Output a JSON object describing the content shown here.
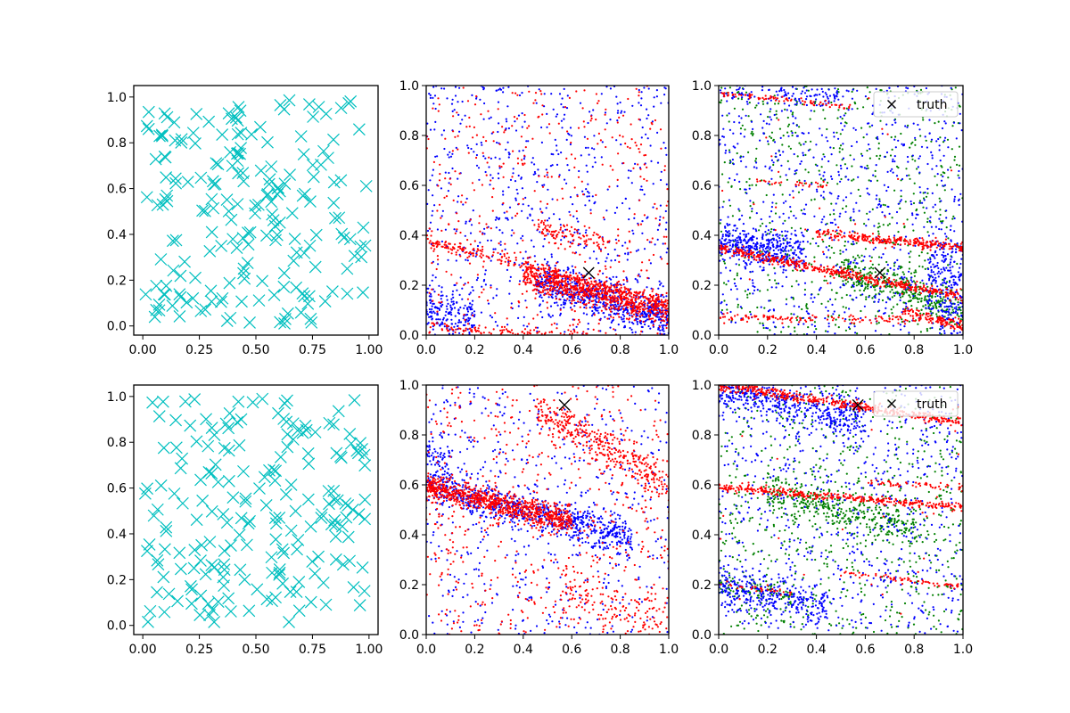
{
  "chart_data": [
    {
      "panel": "row1-col1",
      "type": "scatter",
      "xlim": [
        -0.04,
        1.04
      ],
      "ylim": [
        -0.04,
        1.05
      ],
      "xticks": [
        "0.00",
        "0.25",
        "0.50",
        "0.75",
        "1.00"
      ],
      "yticks": [
        "0.0",
        "0.2",
        "0.4",
        "0.6",
        "0.8",
        "1.0"
      ],
      "grid": false,
      "series": [
        {
          "color": "#00bfbf",
          "marker": "x-large",
          "count": 200,
          "distribution": "uniform",
          "seed": 11
        }
      ]
    },
    {
      "panel": "row1-col2",
      "type": "scatter",
      "xlim": [
        0,
        1
      ],
      "ylim": [
        0,
        1
      ],
      "xticks": [
        "0.0",
        "0.2",
        "0.4",
        "0.6",
        "0.8",
        "1.0"
      ],
      "yticks": [
        "0.0",
        "0.2",
        "0.4",
        "0.6",
        "0.8",
        "1.0"
      ],
      "grid": false,
      "series": [
        {
          "color": "#0000ff",
          "marker": "dot",
          "bands": [
            {
              "x": [
                0.45,
                1.0
              ],
              "y0": 0.32,
              "slope": -0.25,
              "spread": 0.04,
              "count": 600
            },
            {
              "x": [
                0.85,
                1.0
              ],
              "y0": 0.4,
              "slope": -1.6,
              "spread": 0.05,
              "count": 120
            },
            {
              "x": [
                0.0,
                0.2
              ],
              "y0": 0.11,
              "slope": -0.3,
              "spread": 0.06,
              "count": 180
            }
          ],
          "background": 700
        },
        {
          "color": "#ff0000",
          "marker": "dot",
          "bands": [
            {
              "x": [
                0.0,
                1.0
              ],
              "y0": 0.38,
              "slope": -0.25,
              "spread": 0.012,
              "count": 260
            },
            {
              "x": [
                0.4,
                1.0
              ],
              "y0": 0.34,
              "slope": -0.25,
              "spread": 0.03,
              "count": 700
            },
            {
              "x": [
                0.0,
                1.0
              ],
              "y0": 0.03,
              "slope": -0.05,
              "spread": 0.012,
              "count": 160
            },
            {
              "x": [
                0.45,
                0.75
              ],
              "y0": 0.52,
              "slope": -0.2,
              "spread": 0.02,
              "count": 90
            }
          ],
          "background": 450
        }
      ],
      "truth": {
        "x": 0.67,
        "y": 0.25
      }
    },
    {
      "panel": "row1-col3",
      "type": "scatter",
      "xlim": [
        0,
        1
      ],
      "ylim": [
        0,
        1
      ],
      "xticks": [
        "0.0",
        "0.2",
        "0.4",
        "0.6",
        "0.8",
        "1.0"
      ],
      "yticks": [
        "0.0",
        "0.2",
        "0.4",
        "0.6",
        "0.8",
        "1.0"
      ],
      "grid": false,
      "series": [
        {
          "color": "#008000",
          "marker": "dot",
          "bands": [
            {
              "x": [
                0.5,
                1.0
              ],
              "y0": 0.44,
              "slope": -0.35,
              "spread": 0.04,
              "count": 350
            }
          ],
          "background": 650
        },
        {
          "color": "#0000ff",
          "marker": "dot",
          "bands": [
            {
              "x": [
                0.0,
                0.35
              ],
              "y0": 0.37,
              "slope": -0.1,
              "spread": 0.04,
              "count": 350
            },
            {
              "x": [
                0.85,
                1.0
              ],
              "y0": 0.5,
              "slope": -0.3,
              "spread": 0.12,
              "count": 250
            },
            {
              "x": [
                0.0,
                0.5
              ],
              "y0": 0.98,
              "slope": -0.05,
              "spread": 0.02,
              "count": 100
            }
          ],
          "background": 800
        },
        {
          "color": "#ff0000",
          "marker": "dot",
          "bands": [
            {
              "x": [
                0.0,
                1.0
              ],
              "y0": 0.35,
              "slope": -0.2,
              "spread": 0.01,
              "count": 450
            },
            {
              "x": [
                0.4,
                1.0
              ],
              "y0": 0.45,
              "slope": -0.1,
              "spread": 0.01,
              "count": 260
            },
            {
              "x": [
                0.0,
                1.0
              ],
              "y0": 0.07,
              "slope": -0.01,
              "spread": 0.008,
              "count": 150
            },
            {
              "x": [
                0.75,
                1.0
              ],
              "y0": 0.33,
              "slope": -0.3,
              "spread": 0.01,
              "count": 90
            },
            {
              "x": [
                0.0,
                0.55
              ],
              "y0": 0.97,
              "slope": -0.1,
              "spread": 0.006,
              "count": 80
            },
            {
              "x": [
                0.15,
                0.45
              ],
              "y0": 0.62,
              "slope": -0.04,
              "spread": 0.006,
              "count": 30
            }
          ],
          "background": 30
        }
      ],
      "truth": {
        "x": 0.66,
        "y": 0.25
      },
      "legend": {
        "label": "truth",
        "position": "top-right"
      }
    },
    {
      "panel": "row2-col1",
      "type": "scatter",
      "xlim": [
        -0.04,
        1.04
      ],
      "ylim": [
        -0.04,
        1.05
      ],
      "xticks": [
        "0.00",
        "0.25",
        "0.50",
        "0.75",
        "1.00"
      ],
      "yticks": [
        "0.0",
        "0.2",
        "0.4",
        "0.6",
        "0.8",
        "1.0"
      ],
      "grid": false,
      "series": [
        {
          "color": "#00bfbf",
          "marker": "x-large",
          "count": 200,
          "distribution": "uniform",
          "seed": 29
        }
      ]
    },
    {
      "panel": "row2-col2",
      "type": "scatter",
      "xlim": [
        0,
        1
      ],
      "ylim": [
        0,
        1
      ],
      "xticks": [
        "0.0",
        "0.2",
        "0.4",
        "0.6",
        "0.8",
        "1.0"
      ],
      "yticks": [
        "0.0",
        "0.2",
        "0.4",
        "0.6",
        "0.8",
        "1.0"
      ],
      "grid": false,
      "series": [
        {
          "color": "#0000ff",
          "marker": "dot",
          "bands": [
            {
              "x": [
                0.0,
                0.85
              ],
              "y0": 0.6,
              "slope": -0.25,
              "spread": 0.035,
              "count": 700
            },
            {
              "x": [
                0.0,
                0.1
              ],
              "y0": 0.72,
              "slope": -0.3,
              "spread": 0.04,
              "count": 60
            }
          ],
          "background": 550
        },
        {
          "color": "#ff0000",
          "marker": "dot",
          "bands": [
            {
              "x": [
                0.0,
                0.6
              ],
              "y0": 0.6,
              "slope": -0.25,
              "spread": 0.025,
              "count": 800
            },
            {
              "x": [
                0.45,
                1.0
              ],
              "y0": 1.15,
              "slope": -0.55,
              "spread": 0.04,
              "count": 350
            },
            {
              "x": [
                0.55,
                1.0
              ],
              "y0": 0.3,
              "slope": -0.25,
              "spread": 0.06,
              "count": 120
            }
          ],
          "background": 550
        }
      ],
      "truth": {
        "x": 0.57,
        "y": 0.92
      }
    },
    {
      "panel": "row2-col3",
      "type": "scatter",
      "xlim": [
        0,
        1
      ],
      "ylim": [
        0,
        1
      ],
      "xticks": [
        "0.0",
        "0.2",
        "0.4",
        "0.6",
        "0.8",
        "1.0"
      ],
      "yticks": [
        "0.0",
        "0.2",
        "0.4",
        "0.6",
        "0.8",
        "1.0"
      ],
      "grid": false,
      "series": [
        {
          "color": "#008000",
          "marker": "dot",
          "bands": [
            {
              "x": [
                0.2,
                0.8
              ],
              "y0": 0.62,
              "slope": -0.25,
              "spread": 0.04,
              "count": 350
            },
            {
              "x": [
                0.0,
                0.3
              ],
              "y0": 0.2,
              "slope": -0.15,
              "spread": 0.03,
              "count": 80
            }
          ],
          "background": 700
        },
        {
          "color": "#0000ff",
          "marker": "dot",
          "bands": [
            {
              "x": [
                0.0,
                0.6
              ],
              "y0": 0.98,
              "slope": -0.2,
              "spread": 0.04,
              "count": 450
            },
            {
              "x": [
                0.0,
                0.45
              ],
              "y0": 0.2,
              "slope": -0.2,
              "spread": 0.04,
              "count": 280
            }
          ],
          "background": 750
        },
        {
          "color": "#ff0000",
          "marker": "dot",
          "bands": [
            {
              "x": [
                0.0,
                1.0
              ],
              "y0": 0.59,
              "slope": -0.08,
              "spread": 0.008,
              "count": 350
            },
            {
              "x": [
                0.0,
                1.0
              ],
              "y0": 1.0,
              "slope": -0.15,
              "spread": 0.01,
              "count": 420
            },
            {
              "x": [
                0.5,
                1.0
              ],
              "y0": 0.31,
              "slope": -0.12,
              "spread": 0.006,
              "count": 70
            },
            {
              "x": [
                0.0,
                0.3
              ],
              "y0": 0.2,
              "slope": -0.1,
              "spread": 0.006,
              "count": 30
            },
            {
              "x": [
                0.6,
                1.0
              ],
              "y0": 0.64,
              "slope": -0.05,
              "spread": 0.006,
              "count": 50
            }
          ],
          "background": 25
        }
      ],
      "truth": {
        "x": 0.57,
        "y": 0.92
      },
      "legend": {
        "label": "truth",
        "position": "top-right"
      }
    }
  ]
}
